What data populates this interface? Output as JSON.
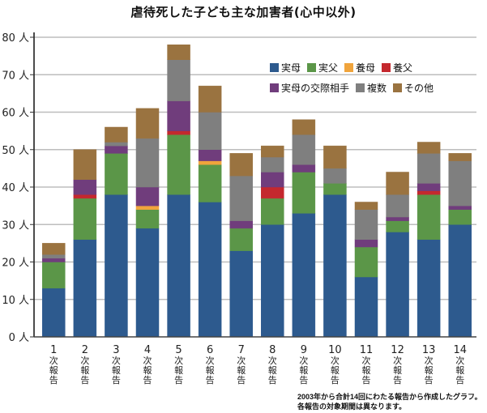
{
  "chart_data": {
    "type": "bar",
    "stacked": true,
    "title": "虐待死した子ども主な加害者(心中以外)",
    "xlabel": "",
    "ylabel": "",
    "ylim": [
      0,
      80
    ],
    "yticks": [
      0,
      10,
      20,
      30,
      40,
      50,
      60,
      70,
      80
    ],
    "ytick_suffix": "人",
    "grid": true,
    "legend_position": "top-right",
    "categories": [
      "1",
      "2",
      "3",
      "4",
      "5",
      "6",
      "7",
      "8",
      "9",
      "10",
      "11",
      "12",
      "13",
      "14"
    ],
    "category_suffix": "次報告",
    "series": [
      {
        "name": "実母",
        "color": "#2d5a8e",
        "values": [
          13,
          26,
          38,
          29,
          38,
          36,
          23,
          30,
          33,
          38,
          16,
          28,
          26,
          30
        ]
      },
      {
        "name": "実父",
        "color": "#5b9648",
        "values": [
          7,
          11,
          11,
          5,
          16,
          10,
          6,
          7,
          11,
          3,
          8,
          3,
          12,
          4
        ]
      },
      {
        "name": "養母",
        "color": "#f0a43c",
        "values": [
          0,
          0,
          0,
          1,
          0,
          1,
          0,
          0,
          0,
          0,
          0,
          0,
          0,
          0
        ]
      },
      {
        "name": "養父",
        "color": "#c4282e",
        "values": [
          0,
          1,
          0,
          0,
          1,
          0,
          0,
          3,
          0,
          0,
          0,
          0,
          1,
          0
        ]
      },
      {
        "name": "実母の交際相手",
        "color": "#703d7c",
        "values": [
          1,
          4,
          2,
          5,
          8,
          3,
          2,
          4,
          2,
          0,
          2,
          1,
          2,
          1
        ]
      },
      {
        "name": "複数",
        "color": "#7f7f7f",
        "values": [
          1,
          0,
          1,
          13,
          11,
          10,
          12,
          4,
          8,
          4,
          8,
          6,
          8,
          12
        ]
      },
      {
        "name": "その他",
        "color": "#9a7340",
        "values": [
          3,
          8,
          4,
          8,
          4,
          7,
          6,
          3,
          4,
          6,
          2,
          6,
          3,
          2
        ]
      }
    ],
    "totals": [
      25,
      50,
      56,
      61,
      78,
      67,
      49,
      51,
      58,
      51,
      36,
      44,
      52,
      49
    ]
  },
  "footer": {
    "line1": "2003年から合計14回にわたる報告から作成したグラフ。",
    "line2": "各報告の対象期間は異なります。"
  }
}
